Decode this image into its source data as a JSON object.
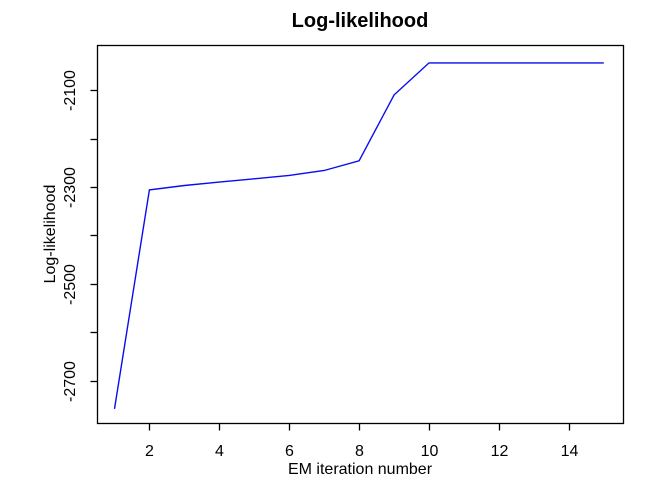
{
  "chart_data": {
    "type": "line",
    "title": "Log-likelihood",
    "xlabel": "EM iteration number",
    "ylabel": "Log-likelihood",
    "series": [
      {
        "name": "log-likelihood",
        "x": [
          1,
          2,
          3,
          4,
          5,
          6,
          7,
          8,
          9,
          10,
          11,
          12,
          13,
          14,
          15
        ],
        "y": [
          -2758,
          -2306,
          -2297,
          -2290,
          -2283,
          -2276,
          -2266,
          -2246,
          -2110,
          -2044,
          -2044,
          -2044,
          -2044,
          -2044,
          -2044
        ]
      }
    ],
    "xlim": [
      0.5,
      15.55
    ],
    "ylim": [
      -2787,
      -2007
    ],
    "x_ticks": [
      {
        "value": 2,
        "label": "2"
      },
      {
        "value": 4,
        "label": "4"
      },
      {
        "value": 6,
        "label": "6"
      },
      {
        "value": 8,
        "label": "8"
      },
      {
        "value": 10,
        "label": "10"
      },
      {
        "value": 12,
        "label": "12"
      },
      {
        "value": 14,
        "label": "14"
      }
    ],
    "y_ticks": [
      {
        "value": -2700,
        "label": "-2700"
      },
      {
        "value": -2600,
        "label": ""
      },
      {
        "value": -2500,
        "label": "-2500"
      },
      {
        "value": -2400,
        "label": ""
      },
      {
        "value": -2300,
        "label": "-2300"
      },
      {
        "value": -2200,
        "label": ""
      },
      {
        "value": -2100,
        "label": "-2100"
      }
    ],
    "grid": false,
    "legend": "none",
    "line_color": "#0b0bf0",
    "axis_color": "#000000",
    "text_color": "#000000",
    "background_color": "#ffffff"
  }
}
